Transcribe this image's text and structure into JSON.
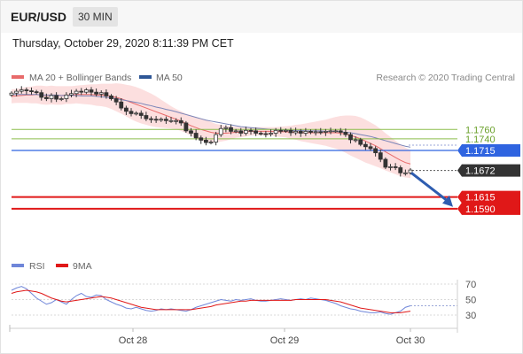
{
  "header": {
    "symbol": "EUR/USD",
    "timeframe": "30 MIN",
    "datetime": "Thursday, October 29, 2020 8:11:39 PM CET"
  },
  "legend": {
    "ma20_label": "MA 20 + Bollinger Bands",
    "ma50_label": "MA 50",
    "copyright": "Research © 2020 Trading Central",
    "rsi_label": "RSI",
    "rsi_ma_label": "9MA"
  },
  "colors": {
    "candle": "#333333",
    "ma20": "#e86a6a",
    "bollinger_fill": "#fbd9d9",
    "ma50": "#7a85b8",
    "pivot": "#2f64e0",
    "resistance": "#8cbd4c",
    "support": "#e01818",
    "last_price": "#333333",
    "arrow": "#2e5db0",
    "rsi": "#6f86d9",
    "rsi_ma": "#e01818"
  },
  "chart_data": [
    {
      "type": "candlestick",
      "x_labels": [
        "Oct 28",
        "Oct 29",
        "Oct 30"
      ],
      "ylim": [
        1.1565,
        1.1865
      ],
      "price_levels": [
        {
          "value": "1.1760",
          "kind": "resistance"
        },
        {
          "value": "1.1740",
          "kind": "resistance"
        },
        {
          "value": "1.1715",
          "kind": "pivot"
        },
        {
          "value": "1.1672",
          "kind": "last"
        },
        {
          "value": "1.1615",
          "kind": "support"
        },
        {
          "value": "1.1590",
          "kind": "support"
        }
      ],
      "forecast_arrow": {
        "from": 1.1667,
        "to": 1.1594
      },
      "closes": [
        1.1838,
        1.1842,
        1.1845,
        1.1843,
        1.1841,
        1.1839,
        1.1829,
        1.1826,
        1.1833,
        1.1825,
        1.1826,
        1.1834,
        1.1837,
        1.1842,
        1.184,
        1.1845,
        1.184,
        1.1836,
        1.1839,
        1.1832,
        1.1826,
        1.1819,
        1.1806,
        1.1799,
        1.1794,
        1.1795,
        1.179,
        1.1783,
        1.1782,
        1.178,
        1.1782,
        1.1779,
        1.1779,
        1.1779,
        1.1774,
        1.1757,
        1.1752,
        1.1742,
        1.1737,
        1.1732,
        1.1733,
        1.1749,
        1.1762,
        1.1764,
        1.1756,
        1.1757,
        1.1752,
        1.1758,
        1.1757,
        1.1752,
        1.1751,
        1.175,
        1.1752,
        1.1758,
        1.1757,
        1.1758,
        1.1753,
        1.1756,
        1.1752,
        1.1756,
        1.1754,
        1.1755,
        1.1754,
        1.1756,
        1.1757,
        1.1757,
        1.1754,
        1.1749,
        1.1738,
        1.1738,
        1.1728,
        1.1723,
        1.1719,
        1.171,
        1.1696,
        1.1679,
        1.168,
        1.1678,
        1.1667,
        1.1667,
        1.1673
      ],
      "ma20": [
        1.1831,
        1.1832,
        1.1833,
        1.1834,
        1.1834,
        1.1835,
        1.1834,
        1.1833,
        1.1834,
        1.1833,
        1.1833,
        1.1834,
        1.1834,
        1.1835,
        1.1835,
        1.1835,
        1.1835,
        1.1834,
        1.1834,
        1.1833,
        1.1831,
        1.1829,
        1.1826,
        1.1822,
        1.1818,
        1.1814,
        1.181,
        1.1806,
        1.1802,
        1.1798,
        1.1794,
        1.179,
        1.1786,
        1.1782,
        1.1778,
        1.1773,
        1.1768,
        1.1764,
        1.176,
        1.1757,
        1.1754,
        1.1752,
        1.1752,
        1.1752,
        1.1753,
        1.1754,
        1.1754,
        1.1755,
        1.1756,
        1.1756,
        1.1756,
        1.1756,
        1.1756,
        1.1755,
        1.1755,
        1.1755,
        1.1754,
        1.1754,
        1.1753,
        1.1753,
        1.1753,
        1.1753,
        1.1753,
        1.1753,
        1.1753,
        1.1753,
        1.1752,
        1.175,
        1.1747,
        1.1744,
        1.174,
        1.1735,
        1.173,
        1.1725,
        1.1719,
        1.1712,
        1.1706,
        1.17,
        1.1694,
        1.1689,
        1.1686
      ],
      "ma50": [
        1.1835,
        1.1835,
        1.1835,
        1.1835,
        1.1835,
        1.1835,
        1.1834,
        1.1834,
        1.1834,
        1.1834,
        1.1833,
        1.1833,
        1.1833,
        1.1833,
        1.1832,
        1.1832,
        1.1832,
        1.1831,
        1.183,
        1.1829,
        1.1828,
        1.1826,
        1.1824,
        1.1822,
        1.182,
        1.1818,
        1.1816,
        1.1813,
        1.1811,
        1.1808,
        1.1806,
        1.1803,
        1.1801,
        1.1798,
        1.1795,
        1.1792,
        1.1789,
        1.1786,
        1.1783,
        1.178,
        1.1778,
        1.1776,
        1.1774,
        1.1772,
        1.177,
        1.1768,
        1.1766,
        1.1765,
        1.1764,
        1.1763,
        1.1762,
        1.1761,
        1.176,
        1.176,
        1.1759,
        1.1759,
        1.1758,
        1.1758,
        1.1758,
        1.1757,
        1.1757,
        1.1757,
        1.1757,
        1.1756,
        1.1756,
        1.1756,
        1.1755,
        1.1754,
        1.1753,
        1.1751,
        1.1749,
        1.1747,
        1.1745,
        1.1742,
        1.1739,
        1.1736,
        1.1733,
        1.173,
        1.1727,
        1.1724,
        1.1722
      ],
      "bollinger_width": [
        0.0015,
        0.0015,
        0.0016,
        0.0017,
        0.0018,
        0.0019,
        0.002,
        0.002,
        0.002,
        0.002,
        0.002,
        0.0019,
        0.0019,
        0.0019,
        0.002,
        0.0021,
        0.0022,
        0.0023,
        0.0024,
        0.0025,
        0.0027,
        0.003,
        0.0032,
        0.0034,
        0.0036,
        0.0037,
        0.0037,
        0.0036,
        0.0035,
        0.0033,
        0.003,
        0.0027,
        0.0024,
        0.0022,
        0.0021,
        0.0021,
        0.0022,
        0.0023,
        0.0024,
        0.0024,
        0.0022,
        0.002,
        0.0018,
        0.0016,
        0.0014,
        0.0012,
        0.0011,
        0.001,
        0.0009,
        0.0009,
        0.0009,
        0.0009,
        0.0009,
        0.001,
        0.0011,
        0.0012,
        0.0014,
        0.0016,
        0.0018,
        0.002,
        0.0022,
        0.0024,
        0.0026,
        0.0028,
        0.0031,
        0.0034,
        0.0037,
        0.004,
        0.0043,
        0.0045,
        0.0046,
        0.0046,
        0.0045,
        0.0044,
        0.0042,
        0.004,
        0.0038,
        0.0036,
        0.0034,
        0.0032,
        0.003
      ]
    },
    {
      "type": "line",
      "name": "RSI panel",
      "ylim": [
        20,
        80
      ],
      "y_ticks": [
        "70",
        "50",
        "30"
      ],
      "series": [
        {
          "key": "RSI",
          "values": [
            62,
            65,
            67,
            64,
            58,
            52,
            48,
            44,
            46,
            50,
            47,
            44,
            50,
            55,
            58,
            54,
            53,
            56,
            55,
            50,
            47,
            44,
            42,
            39,
            38,
            40,
            38,
            36,
            35,
            36,
            38,
            37,
            38,
            37,
            36,
            35,
            37,
            40,
            42,
            44,
            46,
            48,
            50,
            49,
            48,
            50,
            49,
            50,
            51,
            49,
            48,
            48,
            49,
            50,
            51,
            50,
            49,
            50,
            51,
            50,
            52,
            51,
            50,
            49,
            47,
            45,
            42,
            40,
            38,
            37,
            35,
            34,
            33,
            33,
            34,
            32,
            31,
            33,
            35,
            40,
            42
          ]
        },
        {
          "key": "9MA",
          "values": [
            58,
            60,
            61,
            62,
            61,
            60,
            58,
            55,
            52,
            50,
            48,
            47,
            48,
            49,
            50,
            51,
            52,
            53,
            54,
            53,
            52,
            50,
            48,
            46,
            44,
            42,
            40,
            39,
            38,
            37,
            37,
            37,
            37,
            37,
            37,
            37,
            37,
            38,
            39,
            40,
            41,
            43,
            44,
            45,
            46,
            47,
            48,
            48,
            49,
            49,
            49,
            49,
            49,
            49,
            49,
            49,
            49,
            50,
            50,
            50,
            50,
            50,
            50,
            50,
            49,
            48,
            47,
            45,
            43,
            41,
            39,
            38,
            37,
            36,
            35,
            34,
            33,
            33,
            33,
            34,
            35
          ]
        }
      ]
    }
  ]
}
